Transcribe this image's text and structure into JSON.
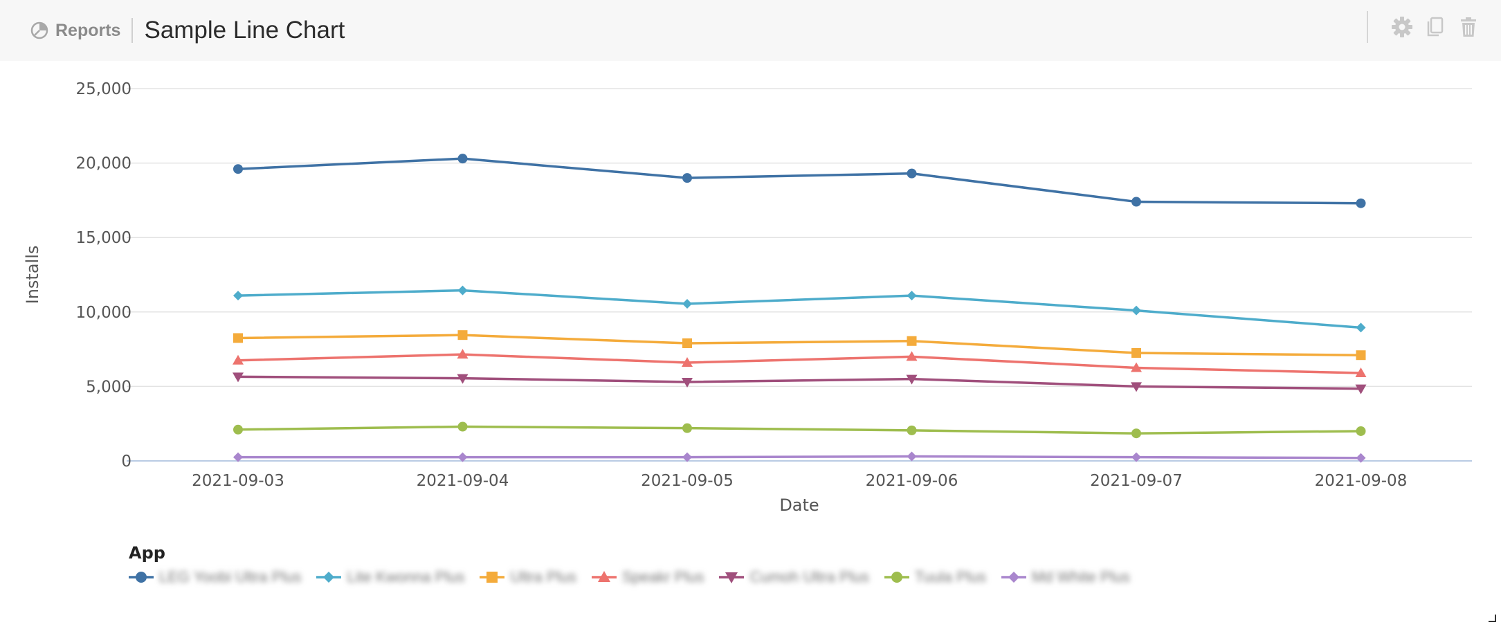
{
  "header": {
    "breadcrumb": "Reports",
    "title": "Sample Line Chart",
    "toolbar": [
      {
        "name": "settings-button",
        "icon": "gear-icon"
      },
      {
        "name": "duplicate-button",
        "icon": "copy-icon"
      },
      {
        "name": "delete-button",
        "icon": "trash-icon"
      }
    ]
  },
  "colors": {
    "header_bg": "#f7f7f7",
    "grid": "#e3e3e3",
    "axis": "#b9cbe4",
    "icon": "#c8c8c8"
  },
  "legend": {
    "title": "App",
    "items": [
      {
        "label": "LEG Yoobi Ultra Plus",
        "color": "#3f72a5",
        "marker": "circle"
      },
      {
        "label": "Lite Kwonna Plus",
        "color": "#4eaccb",
        "marker": "diamond"
      },
      {
        "label": "Ultra Plus",
        "color": "#f4ab3b",
        "marker": "square"
      },
      {
        "label": "Speakr Plus",
        "color": "#ed736e",
        "marker": "triangle"
      },
      {
        "label": "Cumoh Ultra Plus",
        "color": "#a04f7c",
        "marker": "triangle-down"
      },
      {
        "label": "Tuula Plus",
        "color": "#9ebd4e",
        "marker": "circle"
      },
      {
        "label": "Md White Plus",
        "color": "#a986cd",
        "marker": "diamond"
      }
    ]
  },
  "chart_data": {
    "type": "line",
    "title": "Sample Line Chart",
    "xlabel": "Date",
    "ylabel": "Installs",
    "x": [
      "2021-09-03",
      "2021-09-04",
      "2021-09-05",
      "2021-09-06",
      "2021-09-07",
      "2021-09-08"
    ],
    "ylim": [
      0,
      25000
    ],
    "yticks": [
      0,
      5000,
      10000,
      15000,
      20000,
      25000
    ],
    "ytick_labels": [
      "0",
      "5,000",
      "10,000",
      "15,000",
      "20,000",
      "25,000"
    ],
    "grid": true,
    "legend_position": "bottom-left",
    "series": [
      {
        "values": [
          19600,
          20300,
          19000,
          19300,
          17400,
          17300
        ]
      },
      {
        "values": [
          11100,
          11450,
          10550,
          11100,
          10100,
          8950
        ]
      },
      {
        "values": [
          8250,
          8450,
          7900,
          8050,
          7250,
          7100
        ]
      },
      {
        "values": [
          6750,
          7150,
          6600,
          7000,
          6250,
          5900
        ]
      },
      {
        "values": [
          5650,
          5550,
          5300,
          5500,
          5000,
          4850
        ]
      },
      {
        "values": [
          2100,
          2300,
          2200,
          2050,
          1850,
          2000
        ]
      },
      {
        "values": [
          250,
          250,
          250,
          300,
          250,
          200
        ]
      }
    ]
  }
}
